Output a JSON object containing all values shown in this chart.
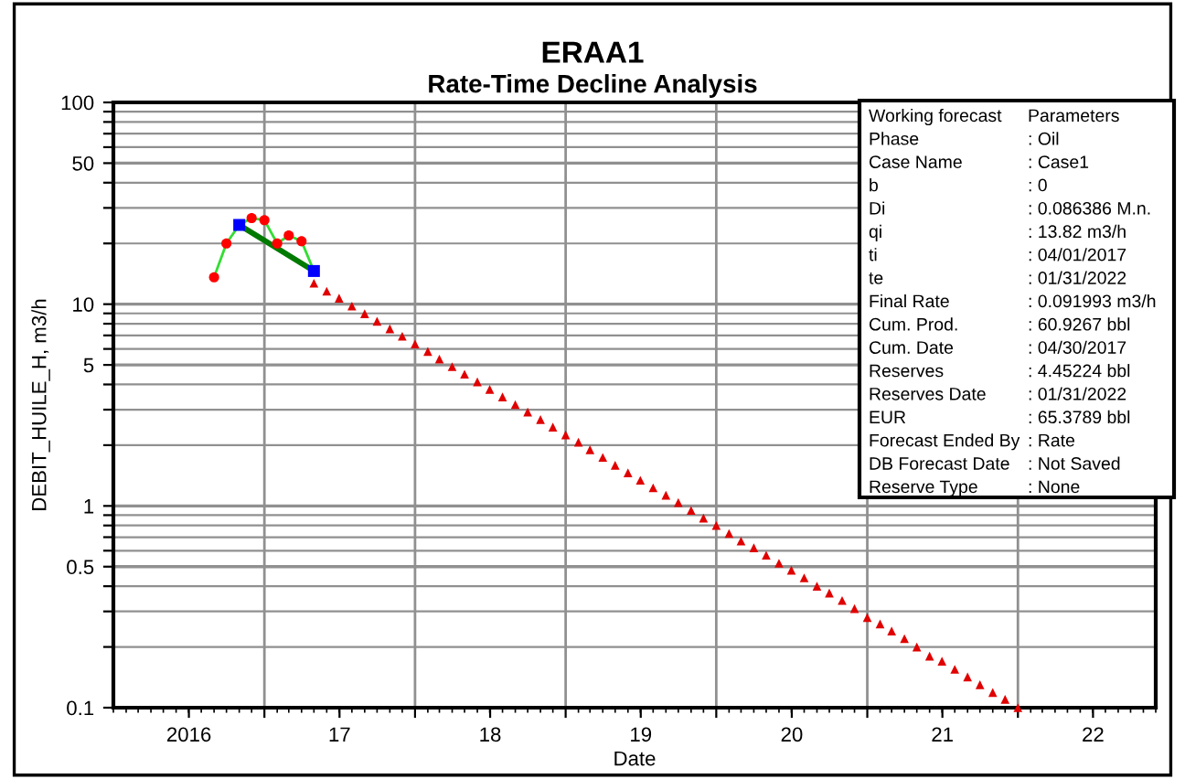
{
  "chart_data": {
    "type": "line",
    "title": "ERAA1",
    "subtitle": "Rate-Time Decline Analysis",
    "xlabel": "Date",
    "ylabel": "DEBIT_HUILE_H, m3/h",
    "log": "y",
    "grid": true,
    "xlim": [
      "2016-01-01",
      "2022-12-01"
    ],
    "xticks": [
      {
        "value": "2016-07-02",
        "label": "2016"
      },
      {
        "value": "2017-01-01",
        "label": null
      },
      {
        "value": "2017-07-02",
        "label": "17"
      },
      {
        "value": "2018-01-01",
        "label": null
      },
      {
        "value": "2018-07-02",
        "label": "18"
      },
      {
        "value": "2019-01-01",
        "label": null
      },
      {
        "value": "2019-07-02",
        "label": "19"
      },
      {
        "value": "2020-01-01",
        "label": null
      },
      {
        "value": "2020-07-02",
        "label": "20"
      },
      {
        "value": "2021-01-01",
        "label": null
      },
      {
        "value": "2021-07-02",
        "label": "21"
      },
      {
        "value": "2022-01-01",
        "label": null
      },
      {
        "value": "2022-07-02",
        "label": "22"
      }
    ],
    "ylim": [
      0.1,
      100
    ],
    "yticks": [
      0.1,
      {
        "value": 0.2,
        "label": null
      },
      {
        "value": 0.3,
        "label": null
      },
      {
        "value": 0.4,
        "label": null
      },
      0.5,
      {
        "value": 0.6,
        "label": null
      },
      {
        "value": 0.7,
        "label": null
      },
      {
        "value": 0.8,
        "label": null
      },
      {
        "value": 0.9,
        "label": null
      },
      1,
      {
        "value": 2,
        "label": null
      },
      {
        "value": 3,
        "label": null
      },
      {
        "value": 4,
        "label": null
      },
      5,
      {
        "value": 6,
        "label": null
      },
      {
        "value": 7,
        "label": null
      },
      {
        "value": 8,
        "label": null
      },
      {
        "value": 9,
        "label": null
      },
      10,
      {
        "value": 20,
        "label": null
      },
      {
        "value": 30,
        "label": null
      },
      {
        "value": 40,
        "label": null
      },
      50,
      {
        "value": 60,
        "label": null
      },
      {
        "value": 70,
        "label": null
      },
      {
        "value": 80,
        "label": null
      },
      {
        "value": 90,
        "label": null
      },
      100
    ],
    "series": [
      {
        "color": "#33dd33",
        "marker": "none",
        "x": [
          "2016-09-01",
          "2016-10-01",
          "2016-11-01",
          "2016-12-01",
          "2017-01-01",
          "2017-02-01",
          "2017-03-01",
          "2017-04-01",
          "2017-05-01"
        ],
        "values": [
          13.6,
          20.0,
          24.7,
          26.7,
          26.1,
          20.0,
          21.9,
          20.5,
          14.6
        ]
      },
      {
        "type": "scatter",
        "color": "#ff0000",
        "marker": "circle",
        "x": [
          "2016-09-01",
          "2016-10-01",
          "2016-12-01",
          "2017-01-01",
          "2017-02-01",
          "2017-03-01",
          "2017-04-01"
        ],
        "values": [
          13.6,
          20.0,
          26.7,
          26.1,
          20.0,
          21.9,
          20.5
        ]
      },
      {
        "color": "#007a00",
        "marker": "none",
        "x": [
          "2016-11-01",
          "2017-05-01"
        ],
        "values": [
          24.7,
          14.6
        ]
      },
      {
        "type": "scatter",
        "color": "#0000ff",
        "marker": "square",
        "x": [
          "2016-11-01",
          "2017-05-01"
        ],
        "values": [
          24.7,
          14.6
        ]
      },
      {
        "type": "scatter",
        "color": "#e00000",
        "marker": "triangle",
        "x": [
          "2017-05-01",
          "2017-06-01",
          "2017-07-01",
          "2017-08-01",
          "2017-09-01",
          "2017-10-01",
          "2017-11-01",
          "2017-12-01",
          "2018-01-01",
          "2018-02-01",
          "2018-03-01",
          "2018-04-01",
          "2018-05-01",
          "2018-06-01",
          "2018-07-01",
          "2018-08-01",
          "2018-09-01",
          "2018-10-01",
          "2018-11-01",
          "2018-12-01",
          "2019-01-01",
          "2019-02-01",
          "2019-03-01",
          "2019-04-01",
          "2019-05-01",
          "2019-06-01",
          "2019-07-01",
          "2019-08-01",
          "2019-09-01",
          "2019-10-01",
          "2019-11-01",
          "2019-12-01",
          "2020-01-01",
          "2020-02-01",
          "2020-03-01",
          "2020-04-01",
          "2020-05-01",
          "2020-06-01",
          "2020-07-01",
          "2020-08-01",
          "2020-09-01",
          "2020-10-01",
          "2020-11-01",
          "2020-12-01",
          "2021-01-01",
          "2021-02-01",
          "2021-03-01",
          "2021-04-01",
          "2021-05-01",
          "2021-06-01",
          "2021-07-01",
          "2021-08-01",
          "2021-09-01",
          "2021-10-01",
          "2021-11-01",
          "2021-12-01",
          "2022-01-01"
        ],
        "values": [
          12.7,
          11.6,
          10.7,
          9.78,
          8.97,
          8.23,
          7.55,
          6.93,
          6.35,
          5.83,
          5.34,
          4.9,
          4.5,
          4.12,
          3.78,
          3.47,
          3.18,
          2.92,
          2.68,
          2.46,
          2.25,
          2.07,
          1.9,
          1.74,
          1.59,
          1.46,
          1.34,
          1.23,
          1.13,
          1.04,
          0.95,
          0.87,
          0.8,
          0.73,
          0.67,
          0.62,
          0.57,
          0.52,
          0.48,
          0.44,
          0.4,
          0.37,
          0.34,
          0.31,
          0.28,
          0.26,
          0.24,
          0.22,
          0.2,
          0.18,
          0.17,
          0.155,
          0.142,
          0.13,
          0.119,
          0.11,
          0.1
        ]
      }
    ],
    "annotations": [
      "Working forecast",
      "Parameters",
      "Phase",
      ": Oil",
      "Case Name",
      ": Case1",
      "b",
      ": 0",
      "Di",
      ": 0.086386 M.n.",
      "qi",
      ": 13.82 m3/h",
      "ti",
      ": 04/01/2017",
      "te",
      ": 01/31/2022",
      "Final Rate",
      ": 0.091993 m3/h",
      "Cum. Prod.",
      ": 60.9267 bbl",
      "Cum. Date",
      ": 04/30/2017",
      "Reserves",
      ": 4.45224 bbl",
      "Reserves Date",
      ": 01/31/2022",
      "EUR",
      ": 65.3789 bbl",
      "Forecast Ended By",
      ": Rate",
      "DB Forecast Date",
      ": Not Saved",
      "Reserve Type",
      ": None"
    ]
  }
}
